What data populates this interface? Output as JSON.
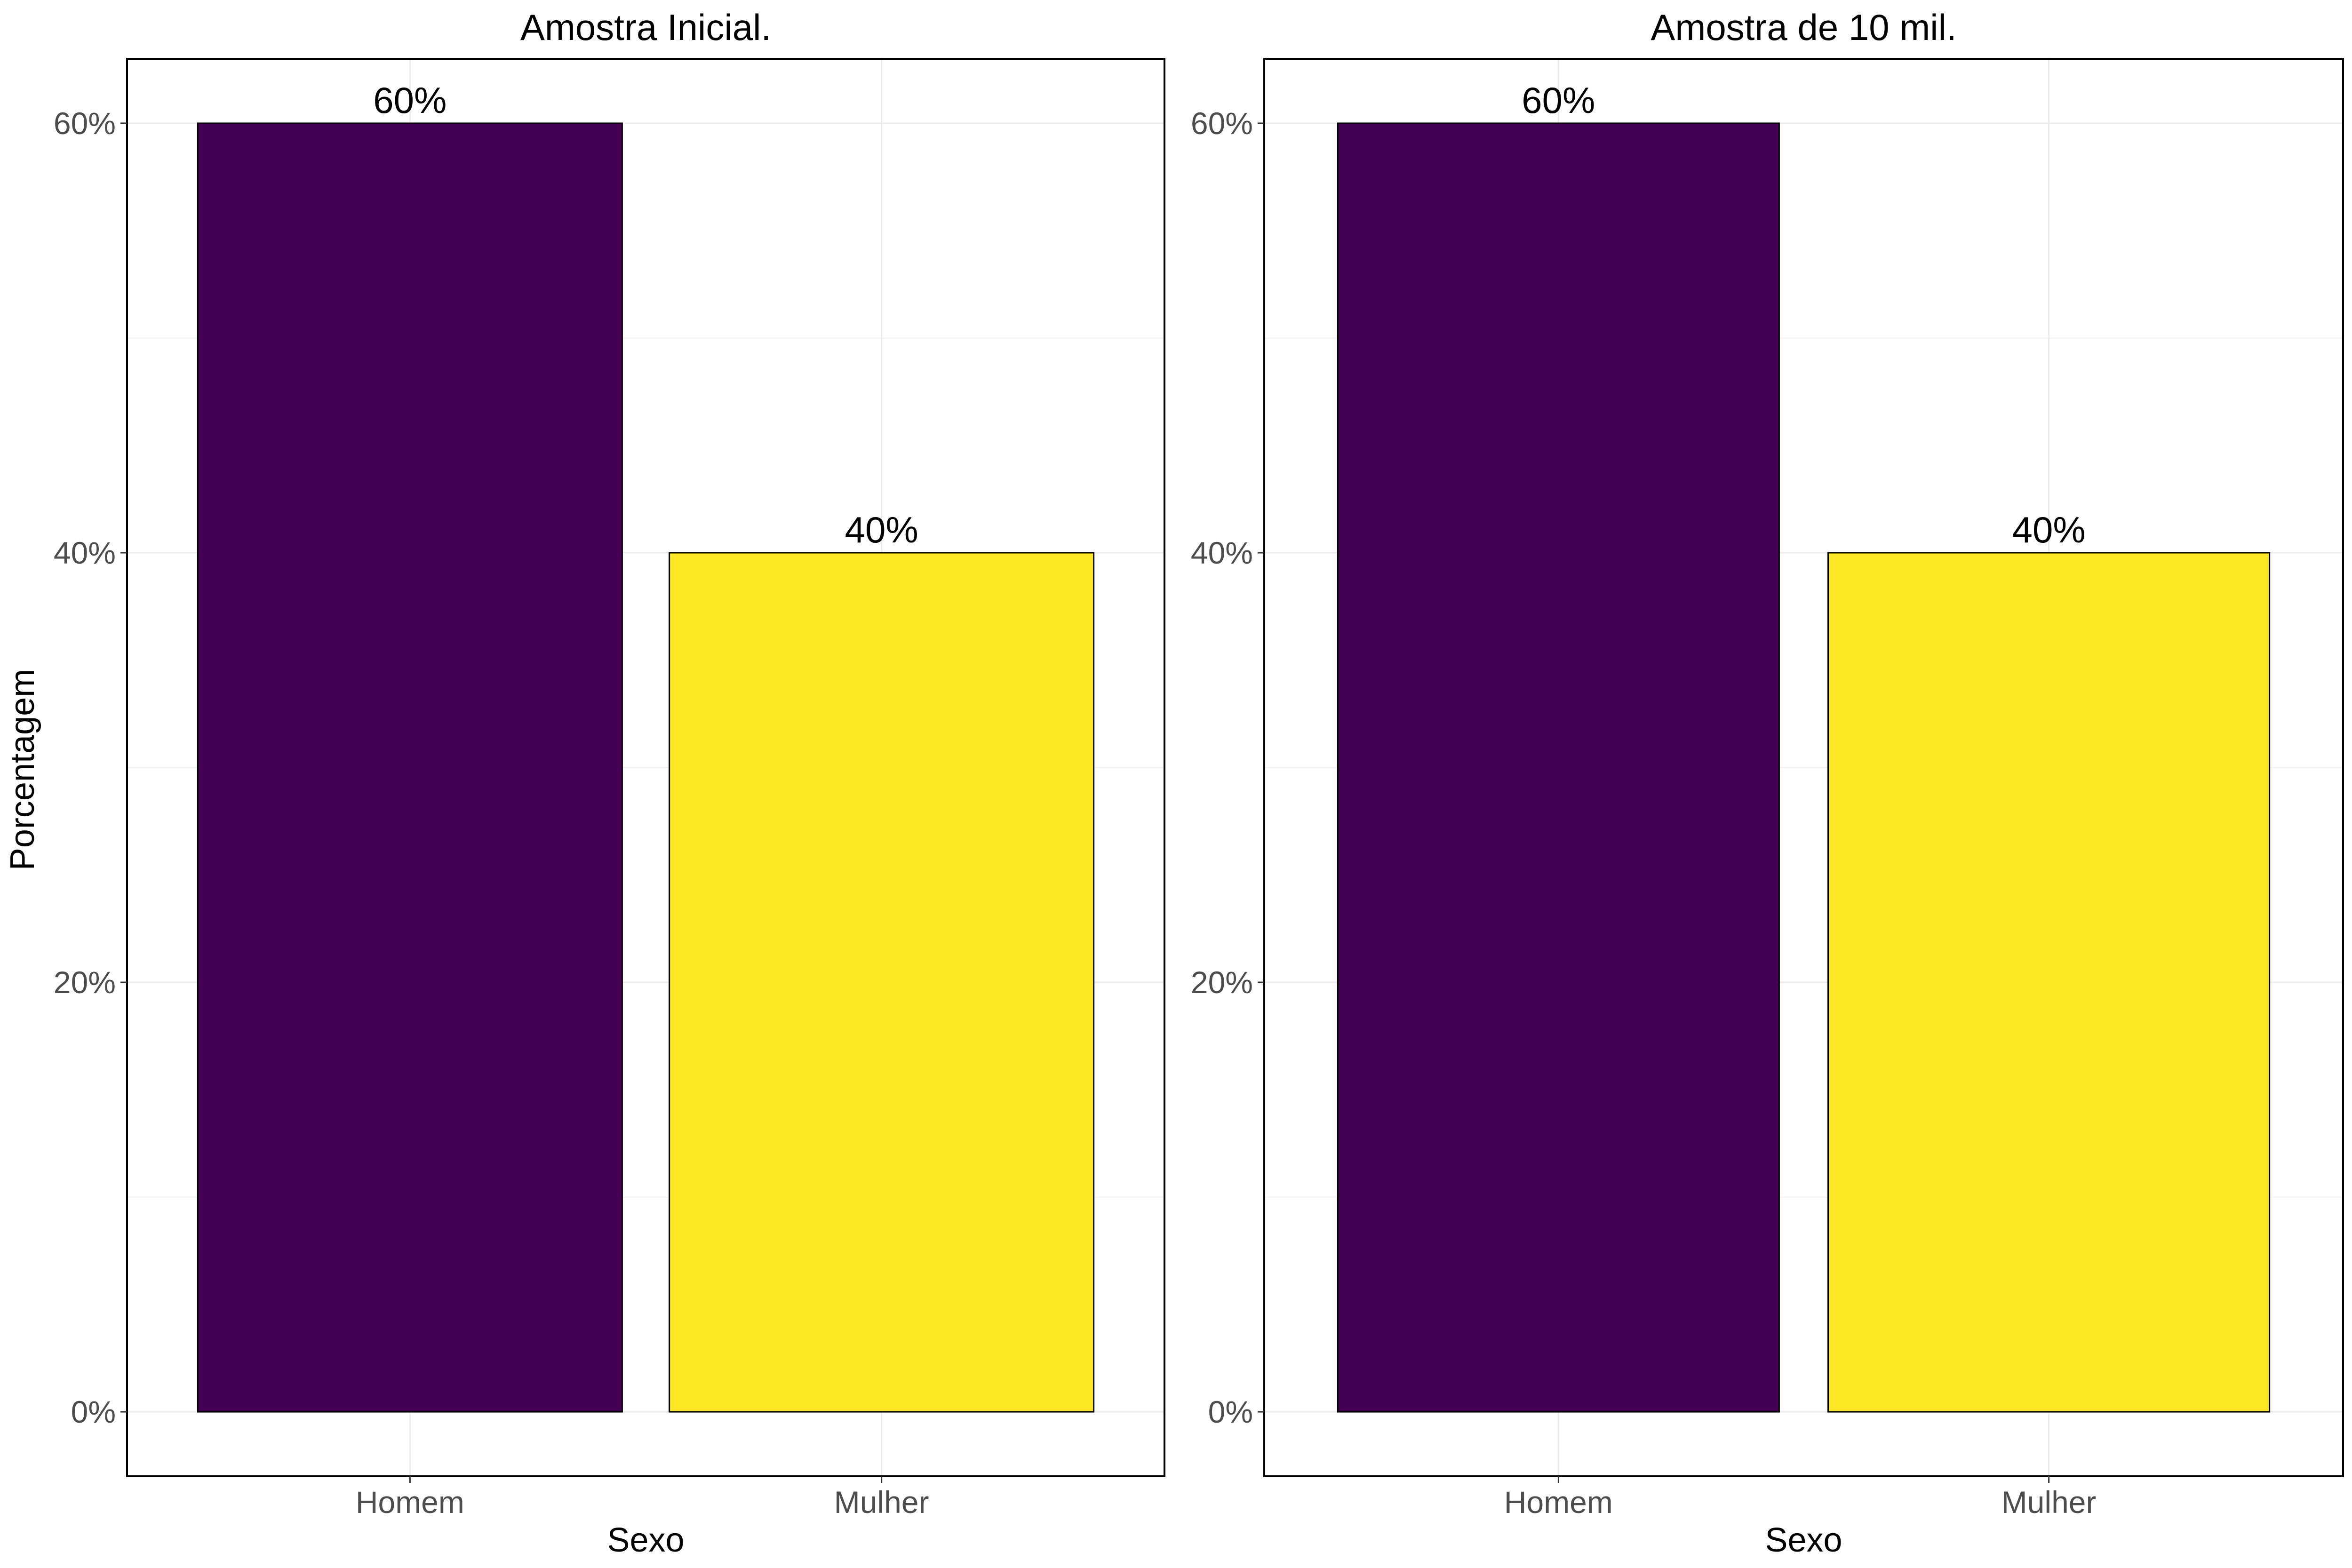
{
  "figure": {
    "y_axis_title": "Porcentagem",
    "colors": {
      "Homem": "#440154",
      "Mulher": "#FDE725"
    }
  },
  "chart_data": [
    {
      "type": "bar",
      "title": "Amostra Inicial.",
      "xlabel": "Sexo",
      "ylabel": "Porcentagem",
      "categories": [
        "Homem",
        "Mulher"
      ],
      "values": [
        60,
        40
      ],
      "data_labels": [
        "60%",
        "40%"
      ],
      "y_ticks": [
        0,
        20,
        40,
        60
      ],
      "y_tick_labels": [
        "0%",
        "20%",
        "40%",
        "60%"
      ],
      "ylim": [
        -3,
        63
      ],
      "grid": true
    },
    {
      "type": "bar",
      "title": "Amostra de 10 mil.",
      "xlabel": "Sexo",
      "ylabel": "",
      "categories": [
        "Homem",
        "Mulher"
      ],
      "values": [
        60,
        40
      ],
      "data_labels": [
        "60%",
        "40%"
      ],
      "y_ticks": [
        0,
        20,
        40,
        60
      ],
      "y_tick_labels": [
        "0%",
        "20%",
        "40%",
        "60%"
      ],
      "ylim": [
        -3,
        63
      ],
      "grid": true
    }
  ]
}
